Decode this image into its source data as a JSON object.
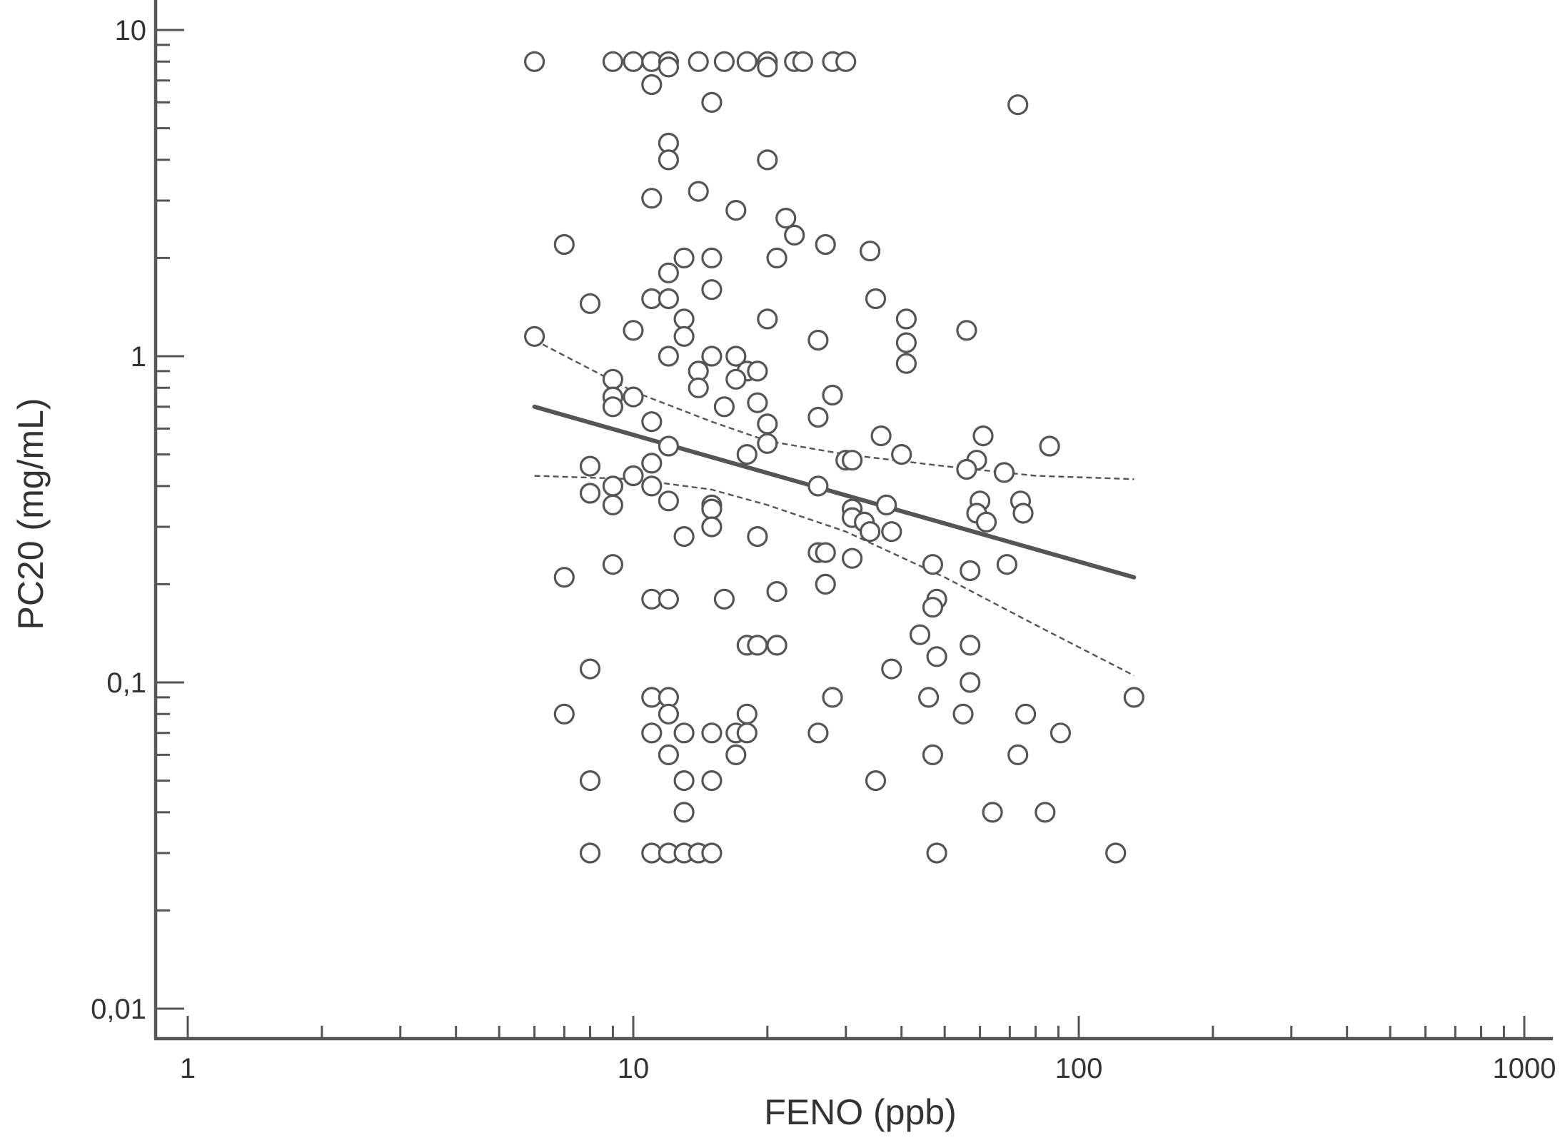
{
  "chart_data": {
    "type": "scatter",
    "xlabel": "FENO (ppb)",
    "ylabel": "PC20 (mg/mL)",
    "x_scale": "log",
    "y_scale": "log",
    "xlim": [
      1,
      1000
    ],
    "ylim": [
      0.01,
      10
    ],
    "x_ticks": [
      {
        "value": 1,
        "label": "1"
      },
      {
        "value": 10,
        "label": "10"
      },
      {
        "value": 100,
        "label": "100"
      },
      {
        "value": 1000,
        "label": "1000"
      }
    ],
    "y_ticks": [
      {
        "value": 0.01,
        "label": "0,01"
      },
      {
        "value": 0.1,
        "label": "0,1"
      },
      {
        "value": 1,
        "label": "1"
      },
      {
        "value": 10,
        "label": "10"
      }
    ],
    "grid": false,
    "colors": {
      "axis": "#555555",
      "marker_edge": "#555555",
      "marker_fill": "#ffffff",
      "text": "#333333"
    },
    "points": [
      [
        6,
        8
      ],
      [
        9,
        8
      ],
      [
        10,
        8
      ],
      [
        11,
        8
      ],
      [
        12,
        8
      ],
      [
        12,
        7.7
      ],
      [
        14,
        8
      ],
      [
        16,
        8
      ],
      [
        18,
        8
      ],
      [
        20,
        8
      ],
      [
        20,
        7.7
      ],
      [
        23,
        8
      ],
      [
        24,
        8
      ],
      [
        28,
        8
      ],
      [
        30,
        8
      ],
      [
        11,
        6.8
      ],
      [
        15,
        6
      ],
      [
        73,
        5.9
      ],
      [
        12,
        4.5
      ],
      [
        12,
        4.0
      ],
      [
        20,
        4.0
      ],
      [
        14,
        3.2
      ],
      [
        11,
        3.05
      ],
      [
        17,
        2.8
      ],
      [
        22,
        2.65
      ],
      [
        23,
        2.35
      ],
      [
        7,
        2.2
      ],
      [
        27,
        2.2
      ],
      [
        34,
        2.1
      ],
      [
        13,
        2.0
      ],
      [
        15,
        2.0
      ],
      [
        21,
        2.0
      ],
      [
        12,
        1.8
      ],
      [
        15,
        1.6
      ],
      [
        11,
        1.5
      ],
      [
        12,
        1.5
      ],
      [
        8,
        1.45
      ],
      [
        35,
        1.5
      ],
      [
        13,
        1.3
      ],
      [
        20,
        1.3
      ],
      [
        41,
        1.3
      ],
      [
        10,
        1.2
      ],
      [
        56,
        1.2
      ],
      [
        6,
        1.15
      ],
      [
        13,
        1.15
      ],
      [
        26,
        1.12
      ],
      [
        41,
        1.1
      ],
      [
        12,
        1.0
      ],
      [
        15,
        1.0
      ],
      [
        17,
        1.0
      ],
      [
        41,
        0.95
      ],
      [
        18,
        0.9
      ],
      [
        19,
        0.9
      ],
      [
        14,
        0.9
      ],
      [
        9,
        0.85
      ],
      [
        17,
        0.85
      ],
      [
        14,
        0.8
      ],
      [
        28,
        0.76
      ],
      [
        9,
        0.75
      ],
      [
        10,
        0.75
      ],
      [
        19,
        0.72
      ],
      [
        9,
        0.7
      ],
      [
        16,
        0.7
      ],
      [
        26,
        0.65
      ],
      [
        11,
        0.63
      ],
      [
        20,
        0.62
      ],
      [
        36,
        0.57
      ],
      [
        61,
        0.57
      ],
      [
        12,
        0.53
      ],
      [
        20,
        0.54
      ],
      [
        86,
        0.53
      ],
      [
        18,
        0.5
      ],
      [
        40,
        0.5
      ],
      [
        30,
        0.48
      ],
      [
        31,
        0.48
      ],
      [
        59,
        0.48
      ],
      [
        11,
        0.47
      ],
      [
        8,
        0.46
      ],
      [
        56,
        0.45
      ],
      [
        68,
        0.44
      ],
      [
        10,
        0.43
      ],
      [
        11,
        0.4
      ],
      [
        9,
        0.4
      ],
      [
        26,
        0.4
      ],
      [
        8,
        0.38
      ],
      [
        12,
        0.36
      ],
      [
        60,
        0.36
      ],
      [
        74,
        0.36
      ],
      [
        9,
        0.35
      ],
      [
        15,
        0.35
      ],
      [
        15,
        0.34
      ],
      [
        31,
        0.34
      ],
      [
        37,
        0.35
      ],
      [
        59,
        0.33
      ],
      [
        75,
        0.33
      ],
      [
        31,
        0.32
      ],
      [
        33,
        0.31
      ],
      [
        62,
        0.31
      ],
      [
        15,
        0.3
      ],
      [
        34,
        0.29
      ],
      [
        38,
        0.29
      ],
      [
        13,
        0.28
      ],
      [
        19,
        0.28
      ],
      [
        26,
        0.25
      ],
      [
        27,
        0.25
      ],
      [
        31,
        0.24
      ],
      [
        9,
        0.23
      ],
      [
        47,
        0.23
      ],
      [
        69,
        0.23
      ],
      [
        57,
        0.22
      ],
      [
        7,
        0.21
      ],
      [
        27,
        0.2
      ],
      [
        21,
        0.19
      ],
      [
        11,
        0.18
      ],
      [
        12,
        0.18
      ],
      [
        16,
        0.18
      ],
      [
        48,
        0.18
      ],
      [
        47,
        0.17
      ],
      [
        44,
        0.14
      ],
      [
        18,
        0.13
      ],
      [
        19,
        0.13
      ],
      [
        21,
        0.13
      ],
      [
        57,
        0.13
      ],
      [
        48,
        0.12
      ],
      [
        8,
        0.11
      ],
      [
        38,
        0.11
      ],
      [
        57,
        0.1
      ],
      [
        11,
        0.09
      ],
      [
        12,
        0.09
      ],
      [
        28,
        0.09
      ],
      [
        46,
        0.09
      ],
      [
        133,
        0.09
      ],
      [
        7,
        0.08
      ],
      [
        12,
        0.08
      ],
      [
        18,
        0.08
      ],
      [
        55,
        0.08
      ],
      [
        76,
        0.08
      ],
      [
        11,
        0.07
      ],
      [
        13,
        0.07
      ],
      [
        15,
        0.07
      ],
      [
        17,
        0.07
      ],
      [
        18,
        0.07
      ],
      [
        26,
        0.07
      ],
      [
        91,
        0.07
      ],
      [
        12,
        0.06
      ],
      [
        17,
        0.06
      ],
      [
        47,
        0.06
      ],
      [
        73,
        0.06
      ],
      [
        8,
        0.05
      ],
      [
        13,
        0.05
      ],
      [
        15,
        0.05
      ],
      [
        35,
        0.05
      ],
      [
        13,
        0.04
      ],
      [
        64,
        0.04
      ],
      [
        84,
        0.04
      ],
      [
        8,
        0.03
      ],
      [
        11,
        0.03
      ],
      [
        12,
        0.03
      ],
      [
        13,
        0.03
      ],
      [
        14,
        0.03
      ],
      [
        15,
        0.03
      ],
      [
        48,
        0.03
      ],
      [
        121,
        0.03
      ]
    ],
    "fit_line": [
      [
        6,
        0.7
      ],
      [
        133,
        0.21
      ]
    ],
    "ci_upper": [
      [
        6,
        1.12
      ],
      [
        10,
        0.78
      ],
      [
        15,
        0.63
      ],
      [
        20,
        0.55
      ],
      [
        30,
        0.5
      ],
      [
        50,
        0.46
      ],
      [
        80,
        0.43
      ],
      [
        133,
        0.42
      ]
    ],
    "ci_lower": [
      [
        6,
        0.43
      ],
      [
        10,
        0.42
      ],
      [
        15,
        0.39
      ],
      [
        20,
        0.35
      ],
      [
        30,
        0.29
      ],
      [
        50,
        0.21
      ],
      [
        80,
        0.15
      ],
      [
        133,
        0.105
      ]
    ]
  }
}
